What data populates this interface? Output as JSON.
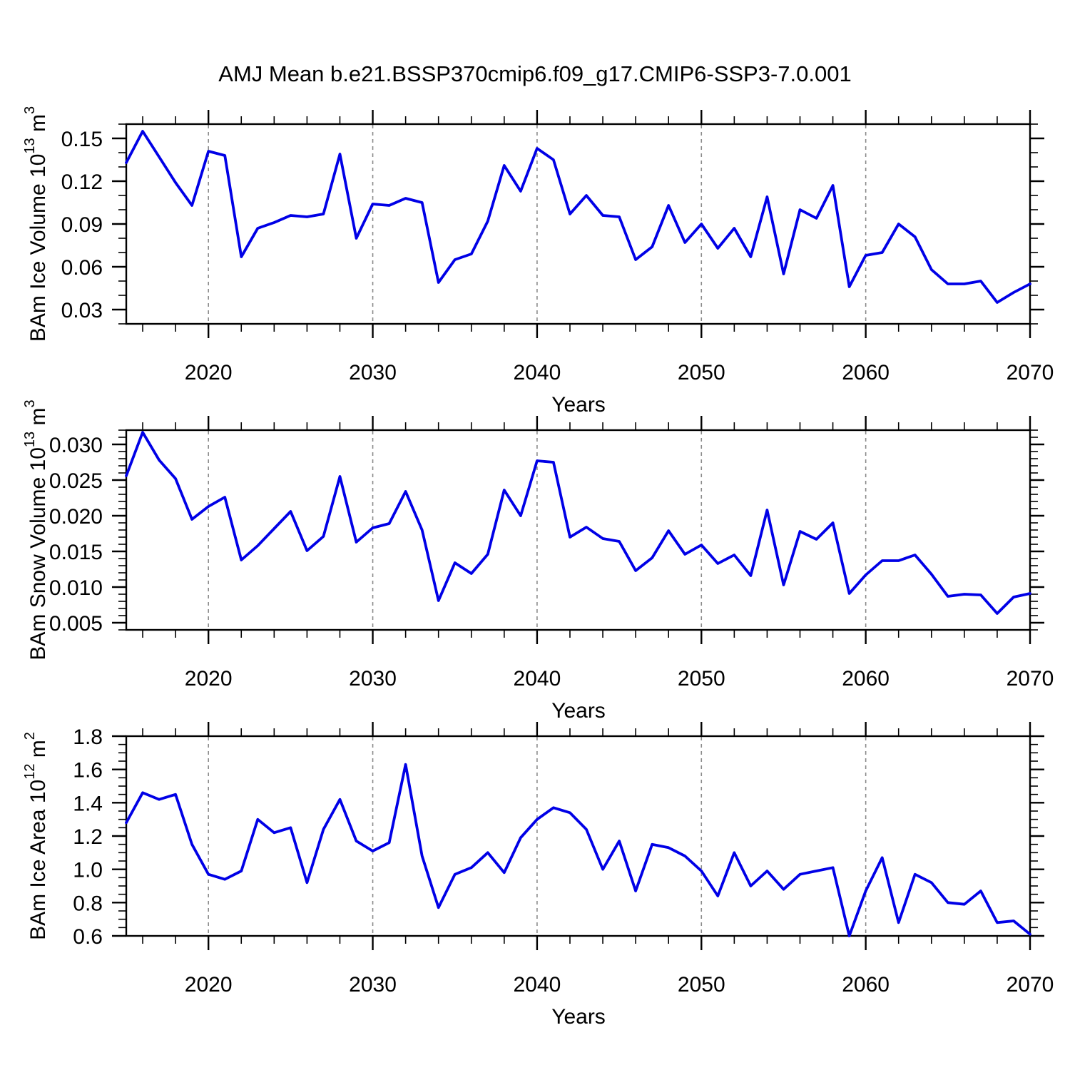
{
  "title": "AMJ Mean b.e21.BSSP370cmip6.f09_g17.CMIP6-SSP3-7.0.001",
  "colors": {
    "line": "#0000E6",
    "grid": "#8a8a8a",
    "axis": "#000000",
    "background": "#ffffff"
  },
  "chart_data": {
    "type": "line",
    "layout_hint": "three stacked panels, shared x axis range, dashed vertical gridlines at decades, outward ticks on all four sides, no legend",
    "x": [
      2015,
      2016,
      2017,
      2018,
      2019,
      2020,
      2021,
      2022,
      2023,
      2024,
      2025,
      2026,
      2027,
      2028,
      2029,
      2030,
      2031,
      2032,
      2033,
      2034,
      2035,
      2036,
      2037,
      2038,
      2039,
      2040,
      2041,
      2042,
      2043,
      2044,
      2045,
      2046,
      2047,
      2048,
      2049,
      2050,
      2051,
      2052,
      2053,
      2054,
      2055,
      2056,
      2057,
      2058,
      2059,
      2060,
      2061,
      2062,
      2063,
      2064,
      2065,
      2066,
      2067,
      2068,
      2069,
      2070
    ],
    "xlim": [
      2015,
      2070
    ],
    "xticks": [
      2020,
      2030,
      2040,
      2050,
      2060,
      2070
    ],
    "xtick_labels": [
      "2020",
      "2030",
      "2040",
      "2050",
      "2060",
      "2070"
    ],
    "xminor_step": 2,
    "grid_x": [
      2020,
      2030,
      2040,
      2050,
      2060
    ],
    "panels": [
      {
        "name": "ice-volume",
        "ylabel": {
          "base": "BAm Ice Volume 10",
          "exp": "13",
          "unit": " m",
          "unit_exp": "3"
        },
        "ylabel_text": "BAm Ice Volume 10^13 m^3",
        "xlabel": "Years",
        "ylim": [
          0.02,
          0.16
        ],
        "yticks": [
          0.03,
          0.06,
          0.09,
          0.12,
          0.15
        ],
        "ytick_labels": [
          "0.03",
          "0.06",
          "0.09",
          "0.12",
          "0.15"
        ],
        "yminor_step": 0.01,
        "values": [
          0.133,
          0.155,
          0.137,
          0.119,
          0.103,
          0.141,
          0.138,
          0.067,
          0.087,
          0.091,
          0.096,
          0.095,
          0.097,
          0.139,
          0.08,
          0.104,
          0.103,
          0.108,
          0.105,
          0.049,
          0.065,
          0.069,
          0.092,
          0.131,
          0.113,
          0.143,
          0.135,
          0.097,
          0.11,
          0.096,
          0.095,
          0.065,
          0.074,
          0.103,
          0.077,
          0.09,
          0.073,
          0.087,
          0.067,
          0.109,
          0.055,
          0.1,
          0.094,
          0.117,
          0.046,
          0.068,
          0.07,
          0.09,
          0.081,
          0.058,
          0.048,
          0.048,
          0.05,
          0.035,
          0.042,
          0.048
        ]
      },
      {
        "name": "snow-volume",
        "ylabel": {
          "base": "BAm Snow Volume 10",
          "exp": "13",
          "unit": " m",
          "unit_exp": "3"
        },
        "ylabel_text": "BAm Snow Volume 10^13 m^3",
        "xlabel": "Years",
        "ylim": [
          0.004,
          0.032
        ],
        "yticks": [
          0.005,
          0.01,
          0.015,
          0.02,
          0.025,
          0.03
        ],
        "ytick_labels": [
          "0.005",
          "0.010",
          "0.015",
          "0.020",
          "0.025",
          "0.030"
        ],
        "yminor_step": 0.001,
        "values": [
          0.0256,
          0.0317,
          0.0278,
          0.0252,
          0.0195,
          0.0213,
          0.0226,
          0.0138,
          0.0158,
          0.0182,
          0.0206,
          0.0151,
          0.0171,
          0.0255,
          0.0163,
          0.0183,
          0.0189,
          0.0234,
          0.018,
          0.0081,
          0.0134,
          0.0119,
          0.0146,
          0.0236,
          0.02,
          0.0277,
          0.0275,
          0.017,
          0.0184,
          0.0168,
          0.0164,
          0.0123,
          0.0141,
          0.0179,
          0.0146,
          0.0159,
          0.0133,
          0.0145,
          0.0116,
          0.0208,
          0.0103,
          0.0178,
          0.0167,
          0.019,
          0.0091,
          0.0117,
          0.0137,
          0.0137,
          0.0145,
          0.0118,
          0.0087,
          0.009,
          0.0089,
          0.0063,
          0.0086,
          0.0091
        ]
      },
      {
        "name": "ice-area",
        "ylabel": {
          "base": "BAm Ice Area 10",
          "exp": "12",
          "unit": " m",
          "unit_exp": "2"
        },
        "ylabel_text": "BAm Ice Area 10^12 m^2",
        "xlabel": "Years",
        "ylim": [
          0.6,
          1.8
        ],
        "yticks": [
          0.6,
          0.8,
          1.0,
          1.2,
          1.4,
          1.6,
          1.8
        ],
        "ytick_labels": [
          "0.6",
          "0.8",
          "1.0",
          "1.2",
          "1.4",
          "1.6",
          "1.8"
        ],
        "yminor_step": 0.05,
        "values": [
          1.28,
          1.46,
          1.42,
          1.45,
          1.15,
          0.97,
          0.94,
          0.99,
          1.3,
          1.22,
          1.25,
          0.92,
          1.24,
          1.42,
          1.17,
          1.11,
          1.16,
          1.63,
          1.08,
          0.77,
          0.97,
          1.01,
          1.1,
          0.98,
          1.19,
          1.3,
          1.37,
          1.34,
          1.24,
          1.0,
          1.17,
          0.87,
          1.15,
          1.13,
          1.08,
          0.99,
          0.84,
          1.1,
          0.9,
          0.99,
          0.88,
          0.97,
          0.99,
          1.01,
          0.6,
          0.87,
          1.07,
          0.68,
          0.97,
          0.92,
          0.8,
          0.79,
          0.87,
          0.68,
          0.69,
          0.61
        ]
      }
    ]
  }
}
